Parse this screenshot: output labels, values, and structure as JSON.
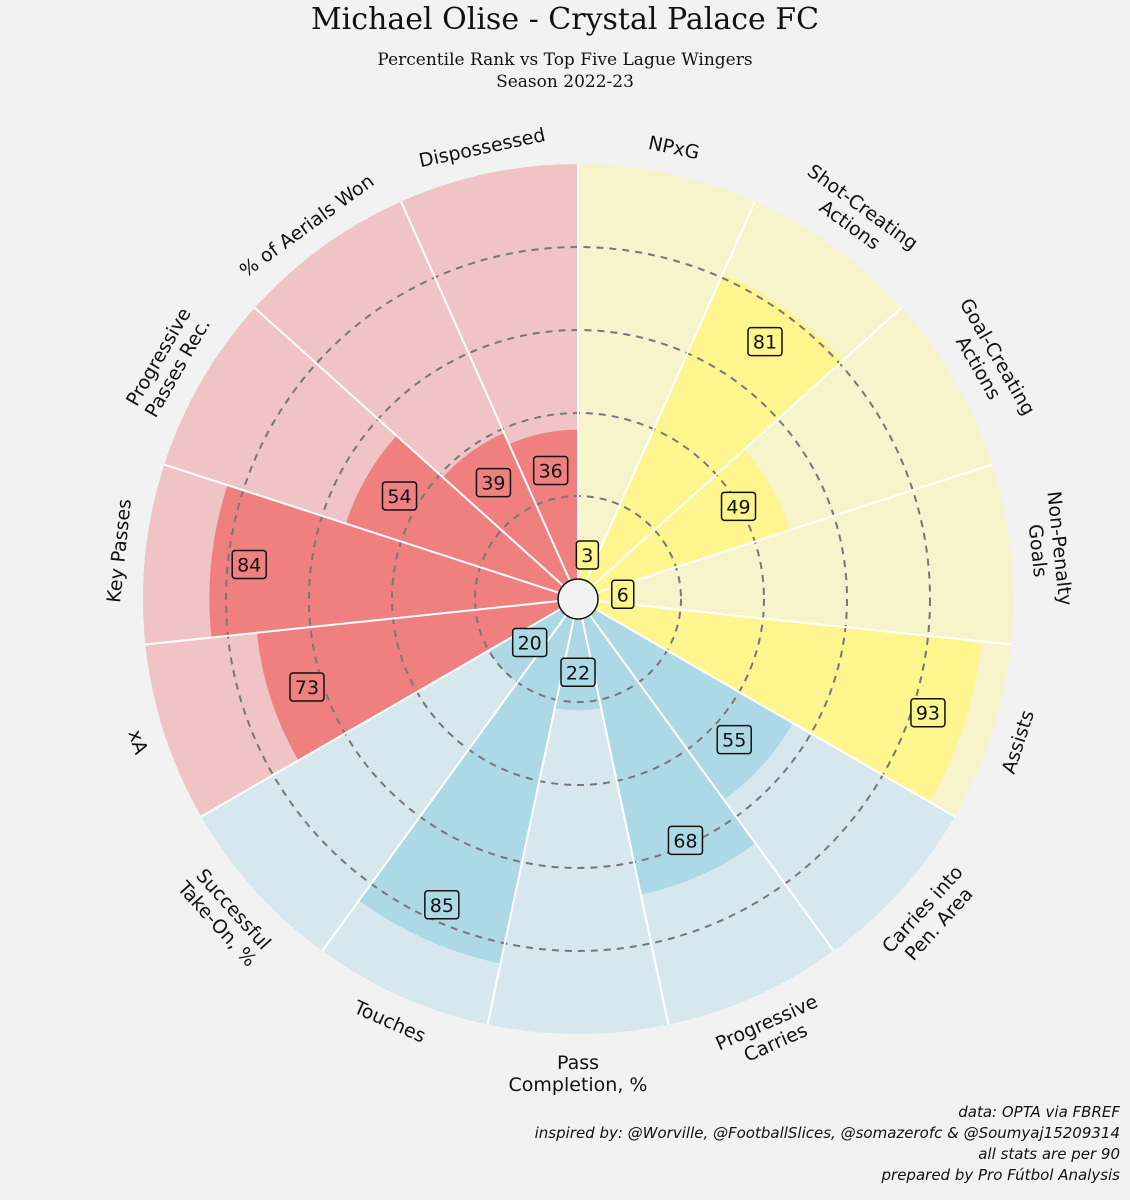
{
  "chart_data": {
    "type": "radial-bar",
    "title": "Michael Olise - Crystal Palace FC",
    "subtitle": "Percentile Rank vs Top Five Lague Wingers",
    "season": "Season 2022-23",
    "rlim": [
      0,
      100
    ],
    "grid_rings": [
      20,
      40,
      60,
      80
    ],
    "categories": [
      {
        "label": "NPxG",
        "value": 3,
        "group": "attacking"
      },
      {
        "label": "Shot-Creating\nActions",
        "value": 81,
        "group": "attacking"
      },
      {
        "label": "Goal-Creating\nActions",
        "value": 49,
        "group": "attacking"
      },
      {
        "label": "Non-Penalty\nGoals",
        "value": 6,
        "group": "attacking"
      },
      {
        "label": "Assists",
        "value": 93,
        "group": "attacking"
      },
      {
        "label": "Carries into\nPen. Area",
        "value": 55,
        "group": "possession"
      },
      {
        "label": "Progressive\nCarries",
        "value": 68,
        "group": "possession"
      },
      {
        "label": "Pass\nCompletion, %",
        "value": 22,
        "group": "possession"
      },
      {
        "label": "Touches",
        "value": 85,
        "group": "possession"
      },
      {
        "label": "Successful\nTake-On, %",
        "value": 20,
        "group": "possession"
      },
      {
        "label": "xA",
        "value": 73,
        "group": "defending"
      },
      {
        "label": "Key Passes",
        "value": 84,
        "group": "defending"
      },
      {
        "label": "Progressive\nPasses Rec.",
        "value": 54,
        "group": "defending"
      },
      {
        "label": "% of Aerials Won",
        "value": 39,
        "group": "defending"
      },
      {
        "label": "Dispossessed",
        "value": 36,
        "group": "defending"
      }
    ],
    "colors": {
      "attacking": {
        "bar": "#fff58f",
        "bg": "#f7f3ca"
      },
      "possession": {
        "bar": "#add8e6",
        "bg": "#d6e8ee"
      },
      "defending": {
        "bar": "#f08080",
        "bg": "#f0c4c4"
      }
    }
  },
  "footer": {
    "line1": "data: OPTA via FBREF",
    "line2": "inspired by: @Worville, @FootballSlices, @somazerofc & @Soumyaj15209314",
    "line3": "all stats are per 90",
    "line4": "prepared by Pro Fútbol Analysis"
  }
}
